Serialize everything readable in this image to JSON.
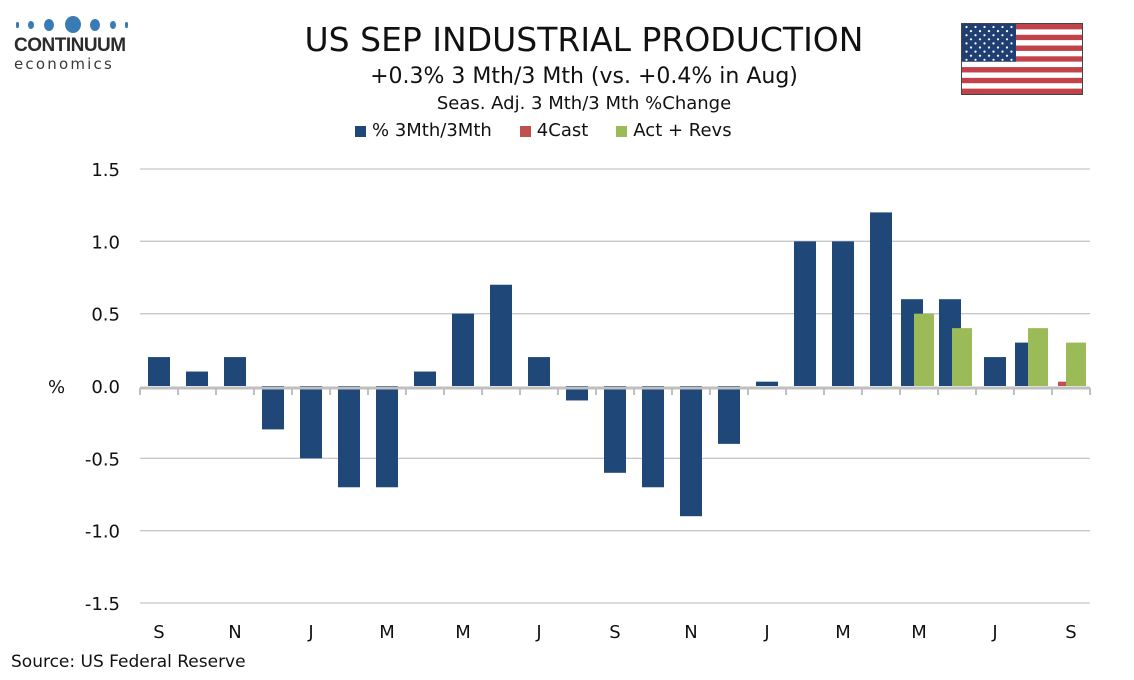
{
  "branding": {
    "logo_word": "CONTINUUM",
    "logo_sub": "economics",
    "logo_color": "#3a7bb5"
  },
  "flag": {
    "name": "us-flag",
    "stripe_red": "#c2424a",
    "canton_blue": "#1f3f73"
  },
  "source": "Source: US Federal Reserve",
  "chart_data": {
    "type": "bar",
    "title": "US SEP INDUSTRIAL PRODUCTION",
    "subtitle": "+0.3% 3 Mth/3 Mth (vs. +0.4% in Aug)",
    "subtitle2": "Seas. Adj. 3 Mth/3 Mth %Change",
    "xlabel": "",
    "ylabel": "%",
    "ylim": [
      -1.5,
      1.5
    ],
    "yticks": [
      1.5,
      1.0,
      0.5,
      0.0,
      -0.5,
      -1.0,
      -1.5
    ],
    "ytick_labels": [
      "1.5",
      "1.0",
      "0.5",
      "0.0",
      "-0.5",
      "-1.0",
      "-1.5"
    ],
    "grid": true,
    "legend_position": "top-center",
    "categories": [
      "Sep 2022",
      "Oct 2022",
      "Nov 2022",
      "Dec 2022",
      "Jan 2023",
      "Feb 2023",
      "Mar 2023",
      "Apr 2023",
      "May 2023",
      "Jun 2023",
      "Jul 2023",
      "Aug 2023",
      "Sep 2023",
      "Oct 2023",
      "Nov 2023",
      "Dec 2023",
      "Jan 2024",
      "Feb 2024",
      "Mar 2024",
      "Apr 2024",
      "May 2024",
      "Jun 2024",
      "Jul 2024",
      "Aug 2024",
      "Sep 2024"
    ],
    "xtick_labels": [
      {
        "index": 0,
        "label": "S"
      },
      {
        "index": 2,
        "label": "N"
      },
      {
        "index": 4,
        "label": "J"
      },
      {
        "index": 6,
        "label": "M"
      },
      {
        "index": 8,
        "label": "M"
      },
      {
        "index": 10,
        "label": "J"
      },
      {
        "index": 12,
        "label": "S"
      },
      {
        "index": 14,
        "label": "N"
      },
      {
        "index": 16,
        "label": "J"
      },
      {
        "index": 18,
        "label": "M"
      },
      {
        "index": 20,
        "label": "M"
      },
      {
        "index": 22,
        "label": "J"
      },
      {
        "index": 24,
        "label": "S"
      }
    ],
    "series": [
      {
        "name": "% 3Mth/3Mth",
        "color": "#1f4878",
        "values": [
          0.2,
          0.1,
          0.2,
          -0.3,
          -0.5,
          -0.7,
          -0.7,
          0.1,
          0.5,
          0.7,
          0.2,
          -0.1,
          -0.6,
          -0.7,
          -0.9,
          -0.4,
          0.03,
          1.0,
          1.0,
          1.2,
          0.6,
          0.6,
          0.2,
          0.3,
          null
        ]
      },
      {
        "name": "4Cast",
        "color": "#c0504d",
        "values": [
          null,
          null,
          null,
          null,
          null,
          null,
          null,
          null,
          null,
          null,
          null,
          null,
          null,
          null,
          null,
          null,
          null,
          null,
          null,
          null,
          null,
          null,
          null,
          null,
          0.03
        ]
      },
      {
        "name": "Act + Revs",
        "color": "#9bbb59",
        "values": [
          null,
          null,
          null,
          null,
          null,
          null,
          null,
          null,
          null,
          null,
          null,
          null,
          null,
          null,
          null,
          null,
          null,
          null,
          null,
          null,
          0.5,
          0.4,
          null,
          0.4,
          0.3
        ]
      }
    ]
  }
}
